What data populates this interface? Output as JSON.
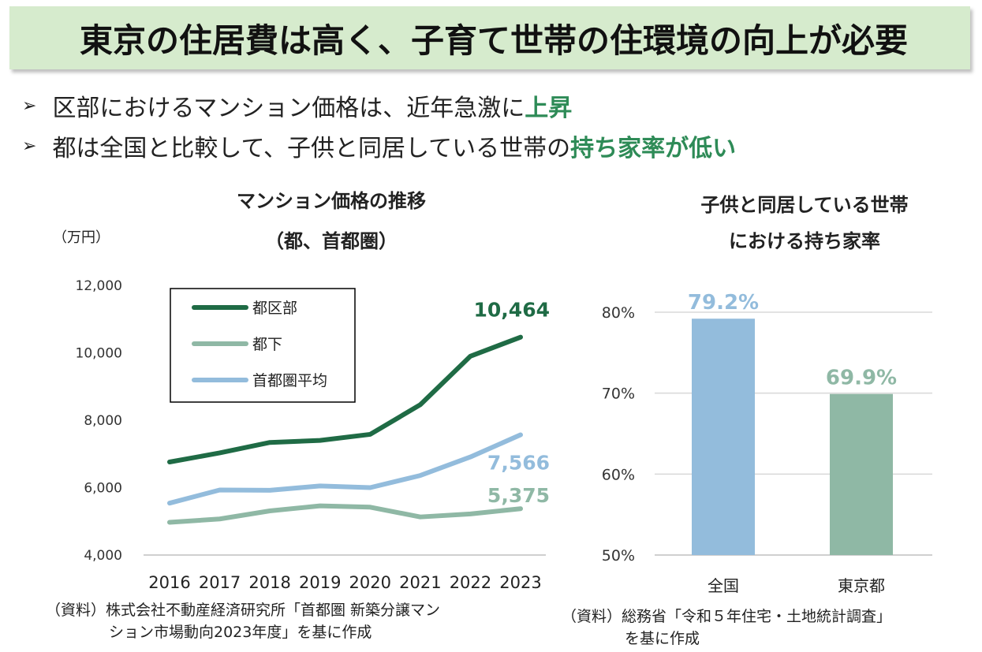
{
  "header": {
    "title": "東京の住居費は高く、子育て世帯の住環境の向上が必要"
  },
  "bullets": [
    {
      "marker": "➢",
      "text": "区部におけるマンション価格は、近年急激に",
      "highlight": "上昇"
    },
    {
      "marker": "➢",
      "text": "都は全国と比較して、子供と同居している世帯の",
      "highlight": "持ち家率が低い"
    }
  ],
  "line_chart": {
    "title_line1": "マンション価格の推移",
    "title_line2": "（都、首都圏）",
    "unit": "（万円）",
    "source_line1": "（資料）株式会社不動産経済研究所「首都圏 新築分譲マン",
    "source_line2": "ション市場動向2023年度」を基に作成"
  },
  "bar_chart": {
    "title_line1": "子供と同居している世帯",
    "title_line2": "における持ち家率",
    "source_line1": "（資料）総務省「令和５年住宅・土地統計調査」",
    "source_line2": "を基に作成"
  },
  "colors": {
    "banner": "#d6ebcd",
    "highlight": "#2e8b57",
    "dark_green": "#1f6b45",
    "gray_green": "#8fb8a5",
    "light_blue": "#93bcdc",
    "grid": "#d9d9d9"
  },
  "chart_data": [
    {
      "type": "line",
      "title": "マンション価格の推移（都、首都圏）",
      "ylabel": "（万円）",
      "x": [
        "2016",
        "2017",
        "2018",
        "2019",
        "2020",
        "2021",
        "2022",
        "2023"
      ],
      "ylim": [
        4000,
        12000
      ],
      "yticks": [
        4000,
        6000,
        8000,
        10000,
        12000
      ],
      "ytick_labels": [
        "4,000",
        "6,000",
        "8,000",
        "10,000",
        "12,000"
      ],
      "legend_position": "top-left",
      "series": [
        {
          "name": "都区部",
          "color": "#1f6b45",
          "values": [
            6760,
            7030,
            7340,
            7400,
            7580,
            8460,
            9900,
            10464
          ],
          "end_label": "10,464"
        },
        {
          "name": "都下",
          "color": "#8fb8a5",
          "values": [
            4970,
            5070,
            5310,
            5460,
            5420,
            5130,
            5220,
            5375
          ],
          "end_label": "5,375"
        },
        {
          "name": "首都圏平均",
          "color": "#93bcdc",
          "values": [
            5540,
            5930,
            5920,
            6050,
            6000,
            6360,
            6910,
            7566
          ],
          "end_label": "7,566"
        }
      ]
    },
    {
      "type": "bar",
      "title": "子供と同居している世帯における持ち家率",
      "categories": [
        "全国",
        "東京都"
      ],
      "values": [
        79.2,
        69.9
      ],
      "value_labels": [
        "79.2%",
        "69.9%"
      ],
      "colors": [
        "#93bcdc",
        "#8fb8a5"
      ],
      "ylim": [
        50,
        80
      ],
      "yticks": [
        50,
        60,
        70,
        80
      ],
      "ytick_labels": [
        "50%",
        "60%",
        "70%",
        "80%"
      ]
    }
  ]
}
